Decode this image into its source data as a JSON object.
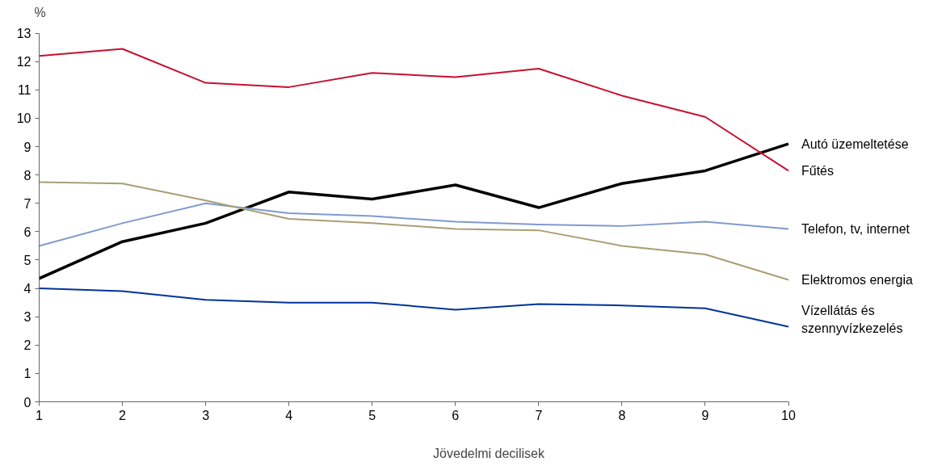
{
  "chart_data": {
    "type": "line",
    "ylabel": "%",
    "xlabel": "Jövedelmi decilisek",
    "x": [
      1,
      2,
      3,
      4,
      5,
      6,
      7,
      8,
      9,
      10
    ],
    "xlim": [
      1,
      10
    ],
    "xticks": [
      1,
      2,
      3,
      4,
      5,
      6,
      7,
      8,
      9,
      10
    ],
    "ylim": [
      0,
      13
    ],
    "yticks": [
      0,
      1,
      2,
      3,
      4,
      5,
      6,
      7,
      8,
      9,
      10,
      11,
      12,
      13
    ],
    "grid": false,
    "line_style": "solid",
    "marker": "none",
    "series": [
      {
        "name": "Autó üzemeltetése",
        "color": "#000000",
        "values": [
          4.35,
          5.65,
          6.3,
          7.4,
          7.15,
          7.65,
          6.85,
          7.7,
          8.15,
          9.1
        ]
      },
      {
        "name": "Fűtés",
        "color": "#c8102e",
        "values": [
          12.2,
          12.45,
          11.25,
          11.1,
          11.6,
          11.45,
          11.75,
          10.8,
          10.05,
          8.15
        ]
      },
      {
        "name": "Telefon, tv, internet",
        "color": "#7f9acf",
        "values": [
          5.5,
          6.3,
          7.0,
          6.65,
          6.55,
          6.35,
          6.25,
          6.2,
          6.35,
          6.1
        ]
      },
      {
        "name": "Elektromos energia",
        "color": "#a89f74",
        "values": [
          7.75,
          7.7,
          7.1,
          6.45,
          6.3,
          6.1,
          6.05,
          5.5,
          5.2,
          4.3
        ]
      },
      {
        "name": "Vízellátás és szennyvízkezelés",
        "color": "#003399",
        "values": [
          4.0,
          3.9,
          3.6,
          3.5,
          3.5,
          3.25,
          3.45,
          3.4,
          3.3,
          2.65
        ]
      }
    ]
  }
}
